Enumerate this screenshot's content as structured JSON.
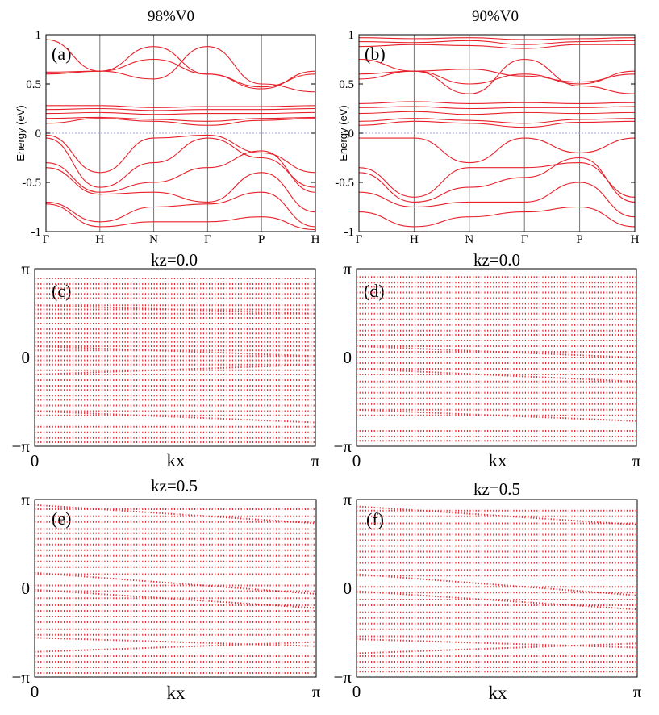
{
  "colors": {
    "bands": "#e8202a",
    "frame": "#000000",
    "fermi": "#9aa3e8",
    "divider": "#777777"
  },
  "chart_data": [
    {
      "type": "line",
      "title": "98%V0",
      "panel_label": "(a)",
      "ylabel": "Energy (eV)",
      "ylim": [
        -1,
        1
      ],
      "yticks": [
        "-1",
        "-0.5",
        "0",
        "0.5",
        "1"
      ],
      "xticks": [
        "Γ",
        "H",
        "N",
        "Γ",
        "P",
        "H"
      ],
      "fermi_level": 0,
      "series": [
        {
          "x": [
            0,
            1,
            2,
            3,
            4,
            5
          ],
          "y": [
            0.6,
            0.63,
            0.88,
            0.6,
            0.45,
            0.63
          ]
        },
        {
          "x": [
            0,
            1,
            2,
            3,
            4,
            5
          ],
          "y": [
            0.62,
            0.63,
            0.75,
            0.6,
            0.47,
            0.6
          ]
        },
        {
          "x": [
            0,
            1,
            2,
            3,
            4,
            5
          ],
          "y": [
            0.95,
            0.63,
            0.55,
            0.88,
            0.5,
            0.42
          ]
        },
        {
          "x": [
            0,
            1,
            2,
            3,
            4,
            5
          ],
          "y": [
            0.28,
            0.28,
            0.26,
            0.27,
            0.27,
            0.28
          ]
        },
        {
          "x": [
            0,
            1,
            2,
            3,
            4,
            5
          ],
          "y": [
            0.24,
            0.25,
            0.23,
            0.24,
            0.24,
            0.25
          ]
        },
        {
          "x": [
            0,
            1,
            2,
            3,
            4,
            5
          ],
          "y": [
            0.2,
            0.21,
            0.19,
            0.2,
            0.2,
            0.21
          ]
        },
        {
          "x": [
            0,
            1,
            2,
            3,
            4,
            5
          ],
          "y": [
            0.15,
            0.16,
            0.14,
            0.12,
            0.15,
            0.16
          ]
        },
        {
          "x": [
            0,
            1,
            2,
            3,
            4,
            5
          ],
          "y": [
            0.1,
            0.15,
            0.12,
            0.08,
            0.13,
            0.15
          ]
        },
        {
          "x": [
            0,
            1,
            2,
            3,
            4,
            5
          ],
          "y": [
            -0.02,
            -0.4,
            -0.05,
            -0.02,
            -0.2,
            -0.4
          ]
        },
        {
          "x": [
            0,
            1,
            2,
            3,
            4,
            5
          ],
          "y": [
            -0.05,
            -0.55,
            -0.3,
            -0.05,
            -0.25,
            -0.55
          ]
        },
        {
          "x": [
            0,
            1,
            2,
            3,
            4,
            5
          ],
          "y": [
            -0.3,
            -0.6,
            -0.5,
            -0.35,
            -0.18,
            -0.6
          ]
        },
        {
          "x": [
            0,
            1,
            2,
            3,
            4,
            5
          ],
          "y": [
            -0.35,
            -0.62,
            -0.6,
            -0.7,
            -0.4,
            -0.8
          ]
        },
        {
          "x": [
            0,
            1,
            2,
            3,
            4,
            5
          ],
          "y": [
            -0.7,
            -0.9,
            -0.75,
            -0.72,
            -0.6,
            -0.95
          ]
        },
        {
          "x": [
            0,
            1,
            2,
            3,
            4,
            5
          ],
          "y": [
            -0.72,
            -0.95,
            -0.9,
            -0.9,
            -0.85,
            -0.98
          ]
        }
      ]
    },
    {
      "type": "line",
      "title": "90%V0",
      "panel_label": "(b)",
      "ylabel": "Energy (eV)",
      "ylim": [
        -1,
        1
      ],
      "yticks": [
        "-1",
        "-0.5",
        "0",
        "0.5",
        "1"
      ],
      "xticks": [
        "Γ",
        "H",
        "N",
        "Γ",
        "P",
        "H"
      ],
      "fermi_level": 0,
      "series": [
        {
          "x": [
            0,
            1,
            2,
            3,
            4,
            5
          ],
          "y": [
            0.97,
            0.96,
            0.97,
            0.95,
            0.96,
            0.97
          ]
        },
        {
          "x": [
            0,
            1,
            2,
            3,
            4,
            5
          ],
          "y": [
            0.93,
            0.92,
            0.94,
            0.9,
            0.93,
            0.94
          ]
        },
        {
          "x": [
            0,
            1,
            2,
            3,
            4,
            5
          ],
          "y": [
            0.88,
            0.9,
            0.89,
            0.86,
            0.9,
            0.9
          ]
        },
        {
          "x": [
            0,
            1,
            2,
            3,
            4,
            5
          ],
          "y": [
            0.55,
            0.63,
            0.5,
            0.6,
            0.5,
            0.63
          ]
        },
        {
          "x": [
            0,
            1,
            2,
            3,
            4,
            5
          ],
          "y": [
            0.6,
            0.63,
            0.65,
            0.58,
            0.52,
            0.6
          ]
        },
        {
          "x": [
            0,
            1,
            2,
            3,
            4,
            5
          ],
          "y": [
            0.75,
            0.63,
            0.4,
            0.75,
            0.48,
            0.4
          ]
        },
        {
          "x": [
            0,
            1,
            2,
            3,
            4,
            5
          ],
          "y": [
            0.3,
            0.32,
            0.3,
            0.31,
            0.3,
            0.31
          ]
        },
        {
          "x": [
            0,
            1,
            2,
            3,
            4,
            5
          ],
          "y": [
            0.26,
            0.27,
            0.25,
            0.26,
            0.26,
            0.27
          ]
        },
        {
          "x": [
            0,
            1,
            2,
            3,
            4,
            5
          ],
          "y": [
            0.2,
            0.22,
            0.19,
            0.21,
            0.2,
            0.21
          ]
        },
        {
          "x": [
            0,
            1,
            2,
            3,
            4,
            5
          ],
          "y": [
            0.12,
            0.15,
            0.13,
            0.1,
            0.14,
            0.15
          ]
        },
        {
          "x": [
            0,
            1,
            2,
            3,
            4,
            5
          ],
          "y": [
            0.08,
            0.12,
            0.1,
            0.06,
            0.11,
            0.12
          ]
        },
        {
          "x": [
            0,
            1,
            2,
            3,
            4,
            5
          ],
          "y": [
            -0.05,
            -0.05,
            -0.3,
            -0.05,
            -0.2,
            -0.05
          ]
        },
        {
          "x": [
            0,
            1,
            2,
            3,
            4,
            5
          ],
          "y": [
            -0.35,
            -0.65,
            -0.35,
            -0.35,
            -0.3,
            -0.65
          ]
        },
        {
          "x": [
            0,
            1,
            2,
            3,
            4,
            5
          ],
          "y": [
            -0.4,
            -0.7,
            -0.55,
            -0.45,
            -0.25,
            -0.7
          ]
        },
        {
          "x": [
            0,
            1,
            2,
            3,
            4,
            5
          ],
          "y": [
            -0.6,
            -0.75,
            -0.7,
            -0.7,
            -0.5,
            -0.85
          ]
        },
        {
          "x": [
            0,
            1,
            2,
            3,
            4,
            5
          ],
          "y": [
            -0.8,
            -0.95,
            -0.85,
            -0.8,
            -0.75,
            -0.95
          ]
        }
      ]
    },
    {
      "type": "scatter",
      "title": "kz=0.0",
      "panel_label": "(c)",
      "xlabel": "kx",
      "xticks": [
        "0",
        "π"
      ],
      "yticks": [
        "π",
        "0",
        "−π"
      ],
      "xlim": [
        0,
        3.1416
      ],
      "ylim": [
        -3.1416,
        3.1416
      ],
      "dotted": true,
      "rows": [
        {
          "y0": 2.8,
          "y1": 2.8
        },
        {
          "y0": 2.6,
          "y1": 2.6
        },
        {
          "y0": 2.45,
          "y1": 2.45
        },
        {
          "y0": 2.25,
          "y1": 2.25
        },
        {
          "y0": 2.1,
          "y1": 2.1
        },
        {
          "y0": 1.85,
          "y1": 1.85
        },
        {
          "y0": 1.7,
          "y1": 1.7
        },
        {
          "y0": 1.55,
          "y1": 1.55
        },
        {
          "y0": 1.4,
          "y1": 1.4
        },
        {
          "y0": 1.2,
          "y1": 1.2
        },
        {
          "y0": 1.0,
          "y1": 1.0
        },
        {
          "y0": 0.85,
          "y1": 0.85
        },
        {
          "y0": 0.7,
          "y1": 0.7
        },
        {
          "y0": 0.55,
          "y1": 0.55
        },
        {
          "y0": 0.4,
          "y1": 0.4
        },
        {
          "y0": 0.25,
          "y1": 0.25
        },
        {
          "y0": 0.05,
          "y1": 0.05
        },
        {
          "y0": -0.1,
          "y1": -0.1
        },
        {
          "y0": -0.25,
          "y1": -0.25
        },
        {
          "y0": -0.45,
          "y1": -0.45
        },
        {
          "y0": -0.6,
          "y1": -0.6
        },
        {
          "y0": -0.8,
          "y1": -0.8
        },
        {
          "y0": -1.0,
          "y1": -1.0
        },
        {
          "y0": -1.15,
          "y1": -1.15
        },
        {
          "y0": -1.35,
          "y1": -1.35
        },
        {
          "y0": -1.5,
          "y1": -1.5
        },
        {
          "y0": -1.7,
          "y1": -1.7
        },
        {
          "y0": -1.9,
          "y1": -1.9
        },
        {
          "y0": -2.05,
          "y1": -2.05
        },
        {
          "y0": -2.45,
          "y1": -2.45
        },
        {
          "y0": -2.65,
          "y1": -2.65
        },
        {
          "y0": -2.85,
          "y1": -2.85
        },
        {
          "y0": -3.0,
          "y1": -3.0
        },
        {
          "y0": 0.4,
          "y1": 0.05
        },
        {
          "y0": -0.6,
          "y1": -0.25
        },
        {
          "y0": -1.9,
          "y1": -2.3
        },
        {
          "y0": 1.85,
          "y1": 1.55
        }
      ]
    },
    {
      "type": "scatter",
      "title": "kz=0.0",
      "panel_label": "(d)",
      "xlabel": "kx",
      "xticks": [
        "0",
        "π"
      ],
      "yticks": [
        "π",
        "0",
        "−π"
      ],
      "xlim": [
        0,
        3.1416
      ],
      "ylim": [
        -3.1416,
        3.1416
      ],
      "dotted": true,
      "rows": [
        {
          "y0": 2.85,
          "y1": 2.85
        },
        {
          "y0": 2.65,
          "y1": 2.65
        },
        {
          "y0": 2.5,
          "y1": 2.5
        },
        {
          "y0": 2.3,
          "y1": 2.3
        },
        {
          "y0": 2.1,
          "y1": 2.1
        },
        {
          "y0": 1.9,
          "y1": 1.9
        },
        {
          "y0": 1.75,
          "y1": 1.75
        },
        {
          "y0": 1.55,
          "y1": 1.55
        },
        {
          "y0": 1.35,
          "y1": 1.35
        },
        {
          "y0": 1.15,
          "y1": 1.15
        },
        {
          "y0": 0.95,
          "y1": 0.95
        },
        {
          "y0": 0.8,
          "y1": 0.8
        },
        {
          "y0": 0.6,
          "y1": 0.6
        },
        {
          "y0": 0.4,
          "y1": 0.4
        },
        {
          "y0": 0.2,
          "y1": 0.2
        },
        {
          "y0": 0.0,
          "y1": 0.0
        },
        {
          "y0": -0.2,
          "y1": -0.2
        },
        {
          "y0": -0.4,
          "y1": -0.4
        },
        {
          "y0": -0.6,
          "y1": -0.6
        },
        {
          "y0": -0.85,
          "y1": -0.85
        },
        {
          "y0": -1.05,
          "y1": -1.05
        },
        {
          "y0": -1.25,
          "y1": -1.25
        },
        {
          "y0": -1.45,
          "y1": -1.45
        },
        {
          "y0": -1.65,
          "y1": -1.65
        },
        {
          "y0": -1.85,
          "y1": -1.85
        },
        {
          "y0": -2.05,
          "y1": -2.05
        },
        {
          "y0": -2.6,
          "y1": -2.6
        },
        {
          "y0": -2.8,
          "y1": -2.8
        },
        {
          "y0": -2.95,
          "y1": -2.95
        },
        {
          "y0": 0.4,
          "y1": 0.0
        },
        {
          "y0": -0.4,
          "y1": -0.85
        },
        {
          "y0": -1.85,
          "y1": -2.25
        }
      ]
    },
    {
      "type": "scatter",
      "title": "kz=0.5",
      "panel_label": "(e)",
      "xlabel": "kx",
      "xticks": [
        "0",
        "π"
      ],
      "yticks": [
        "π",
        "0",
        "−π"
      ],
      "xlim": [
        0,
        3.1416
      ],
      "ylim": [
        -3.1416,
        3.1416
      ],
      "dotted": true,
      "rows": [
        {
          "y0": 2.8,
          "y1": 2.8
        },
        {
          "y0": 2.55,
          "y1": 2.55
        },
        {
          "y0": 2.35,
          "y1": 2.35
        },
        {
          "y0": 2.1,
          "y1": 2.1
        },
        {
          "y0": 1.95,
          "y1": 1.95
        },
        {
          "y0": 1.75,
          "y1": 1.75
        },
        {
          "y0": 1.55,
          "y1": 1.55
        },
        {
          "y0": 1.35,
          "y1": 1.35
        },
        {
          "y0": 1.15,
          "y1": 1.15
        },
        {
          "y0": 0.95,
          "y1": 0.95
        },
        {
          "y0": 0.75,
          "y1": 0.75
        },
        {
          "y0": 0.5,
          "y1": 0.5
        },
        {
          "y0": 0.1,
          "y1": 0.1
        },
        {
          "y0": -0.1,
          "y1": -0.1
        },
        {
          "y0": -0.35,
          "y1": -0.35
        },
        {
          "y0": -0.6,
          "y1": -0.6
        },
        {
          "y0": -0.8,
          "y1": -0.8
        },
        {
          "y0": -1.0,
          "y1": -1.0
        },
        {
          "y0": -1.2,
          "y1": -1.2
        },
        {
          "y0": -1.45,
          "y1": -1.45
        },
        {
          "y0": -1.65,
          "y1": -1.65
        },
        {
          "y0": -2.4,
          "y1": -2.4
        },
        {
          "y0": -2.6,
          "y1": -2.6
        },
        {
          "y0": -2.8,
          "y1": -2.8
        },
        {
          "y0": -3.0,
          "y1": -3.0
        },
        {
          "y0": 2.95,
          "y1": 2.3
        },
        {
          "y0": 0.55,
          "y1": -0.2
        },
        {
          "y0": -0.05,
          "y1": -0.7
        },
        {
          "y0": -1.75,
          "y1": -2.05
        },
        {
          "y0": -2.25,
          "y1": -1.9
        }
      ]
    },
    {
      "type": "scatter",
      "title": "kz=0.5",
      "panel_label": "(f)",
      "xlabel": "kx",
      "xticks": [
        "0",
        "π"
      ],
      "yticks": [
        "π",
        "0",
        "−π"
      ],
      "xlim": [
        0,
        3.1416
      ],
      "ylim": [
        -3.1416,
        3.1416
      ],
      "dotted": true,
      "rows": [
        {
          "y0": 2.75,
          "y1": 2.75
        },
        {
          "y0": 2.55,
          "y1": 2.55
        },
        {
          "y0": 2.3,
          "y1": 2.3
        },
        {
          "y0": 2.1,
          "y1": 2.1
        },
        {
          "y0": 1.9,
          "y1": 1.9
        },
        {
          "y0": 1.7,
          "y1": 1.7
        },
        {
          "y0": 1.5,
          "y1": 1.5
        },
        {
          "y0": 1.3,
          "y1": 1.3
        },
        {
          "y0": 1.1,
          "y1": 1.1
        },
        {
          "y0": 0.9,
          "y1": 0.9
        },
        {
          "y0": 0.65,
          "y1": 0.65
        },
        {
          "y0": 0.45,
          "y1": 0.45
        },
        {
          "y0": 0.05,
          "y1": 0.05
        },
        {
          "y0": -0.15,
          "y1": -0.15
        },
        {
          "y0": -0.4,
          "y1": -0.4
        },
        {
          "y0": -0.6,
          "y1": -0.6
        },
        {
          "y0": -0.85,
          "y1": -0.85
        },
        {
          "y0": -1.05,
          "y1": -1.05
        },
        {
          "y0": -1.25,
          "y1": -1.25
        },
        {
          "y0": -1.45,
          "y1": -1.45
        },
        {
          "y0": -1.7,
          "y1": -1.7
        },
        {
          "y0": -2.4,
          "y1": -2.4
        },
        {
          "y0": -2.6,
          "y1": -2.6
        },
        {
          "y0": -2.8,
          "y1": -2.8
        },
        {
          "y0": -2.95,
          "y1": -2.95
        },
        {
          "y0": 2.9,
          "y1": 2.25
        },
        {
          "y0": 0.5,
          "y1": -0.25
        },
        {
          "y0": -0.1,
          "y1": -0.75
        },
        {
          "y0": -1.8,
          "y1": -2.1
        },
        {
          "y0": -2.3,
          "y1": -1.95
        }
      ]
    }
  ]
}
